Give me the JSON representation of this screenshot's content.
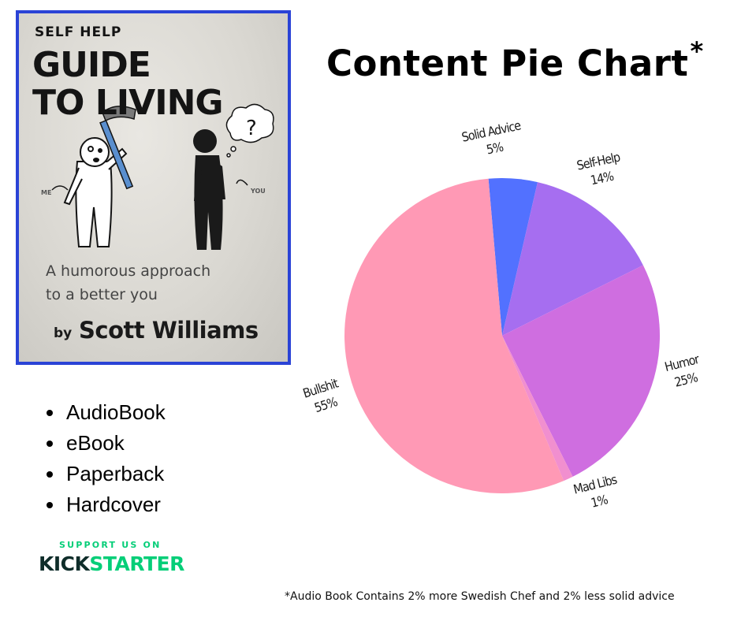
{
  "cover": {
    "kicker": "SELF HELP",
    "title_line1": "GUIDE",
    "title_line2": "TO LIVING",
    "subtitle_line1": "A humorous approach",
    "subtitle_line2": "to a better you",
    "by": "by",
    "author": "Scott Williams",
    "label_me": "ME",
    "label_you": "YOU",
    "thought": "?",
    "colors": {
      "border": "#2a43d6",
      "ink": "#141414",
      "hammer_handle": "#5a8fcf"
    }
  },
  "formats": [
    "AudioBook",
    "eBook",
    "Paperback",
    "Hardcover"
  ],
  "kickstarter": {
    "support": "Support us on",
    "brand_kick": "KICK",
    "brand_starter": "STARTER",
    "colors": {
      "green": "#05ce78",
      "dark": "#0f2d2a"
    }
  },
  "chart": {
    "title": "Content Pie Chart",
    "title_mark": "*",
    "footnote": "*Audio Book Contains 2% more Swedish Chef and 2% less solid advice"
  },
  "chart_data": {
    "type": "pie",
    "title": "Content Pie Chart",
    "categories": [
      "Solid Advice",
      "Self-Help",
      "Humor",
      "Mad Libs",
      "Bullshit"
    ],
    "values": [
      5,
      14,
      25,
      1,
      55
    ],
    "value_labels": [
      "5%",
      "14%",
      "25%",
      "1%",
      "55%"
    ],
    "colors": [
      "#5271ff",
      "#a66ef0",
      "#cf6ee0",
      "#f18fcf",
      "#ff99b5"
    ],
    "start_angle_deg": -5,
    "direction": "clockwise"
  }
}
